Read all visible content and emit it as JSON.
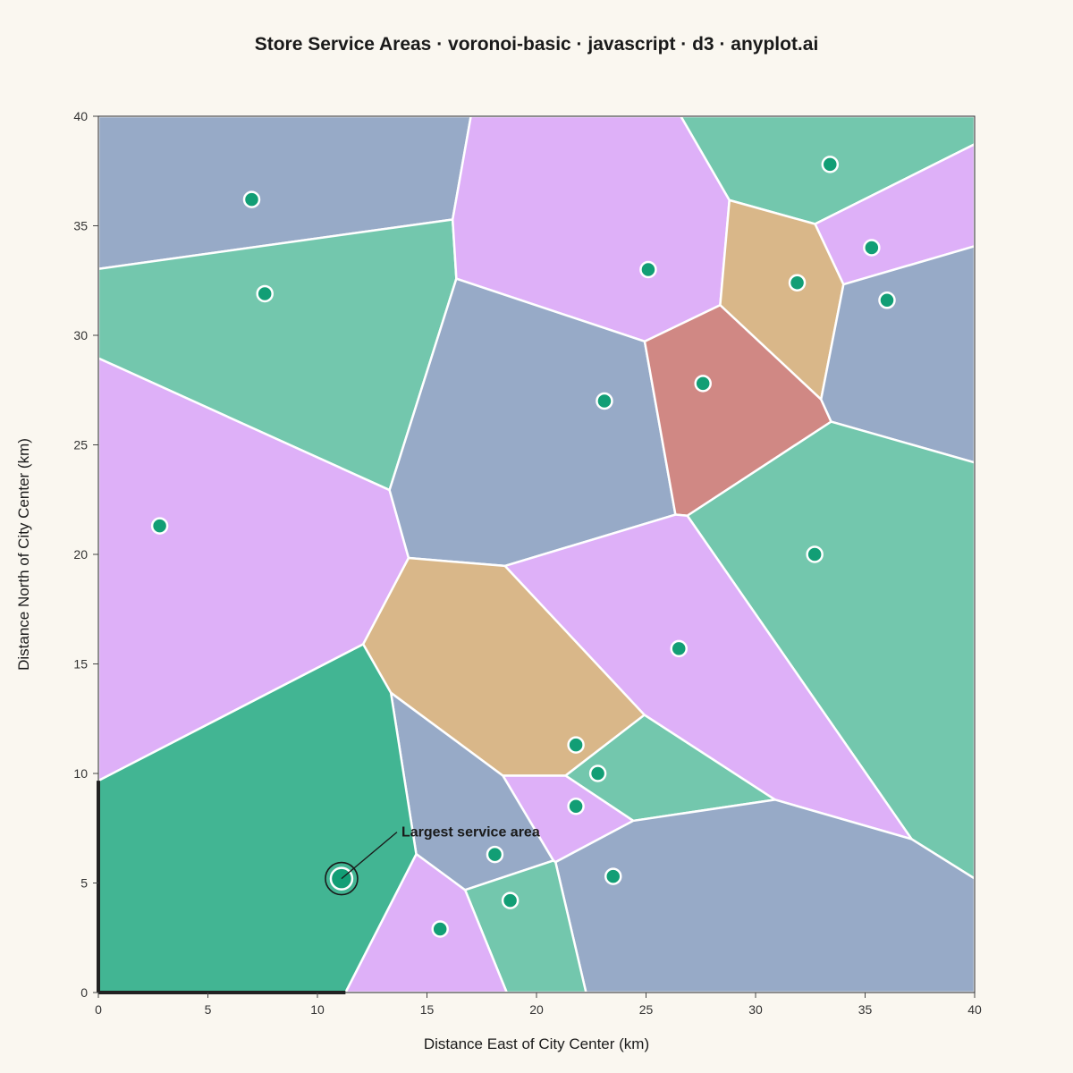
{
  "chart_data": {
    "type": "voronoi",
    "title": "Store Service Areas · voronoi-basic · javascript · d3 · anyplot.ai",
    "xlabel": "Distance East of City Center (km)",
    "ylabel": "Distance North of City Center (km)",
    "xlim": [
      0,
      40
    ],
    "ylim": [
      0,
      40
    ],
    "xticks": [
      0,
      5,
      10,
      15,
      20,
      25,
      30,
      35,
      40
    ],
    "yticks": [
      0,
      5,
      10,
      15,
      20,
      25,
      30,
      35,
      40
    ],
    "grid": false,
    "colors": {
      "background": "#FAF7F0",
      "blue": "#97AAC7",
      "lilac": "#DEB0F8",
      "green": "#73C7AD",
      "tan": "#D9B789",
      "red": "#D08884",
      "highlight": "#42B593",
      "point": "#129E75",
      "edge": "#FFFFFF"
    },
    "stores": [
      {
        "x": 7.0,
        "y": 36.2,
        "color": "blue"
      },
      {
        "x": 7.6,
        "y": 31.9,
        "color": "green"
      },
      {
        "x": 2.8,
        "y": 21.3,
        "color": "lilac"
      },
      {
        "x": 25.1,
        "y": 33.0,
        "color": "lilac"
      },
      {
        "x": 33.4,
        "y": 37.8,
        "color": "green"
      },
      {
        "x": 35.3,
        "y": 34.0,
        "color": "lilac"
      },
      {
        "x": 31.9,
        "y": 32.4,
        "color": "tan"
      },
      {
        "x": 36.0,
        "y": 31.6,
        "color": "blue"
      },
      {
        "x": 23.1,
        "y": 27.0,
        "color": "blue"
      },
      {
        "x": 27.6,
        "y": 27.8,
        "color": "red"
      },
      {
        "x": 32.7,
        "y": 20.0,
        "color": "green"
      },
      {
        "x": 26.5,
        "y": 15.7,
        "color": "lilac"
      },
      {
        "x": 21.8,
        "y": 11.3,
        "color": "tan"
      },
      {
        "x": 22.8,
        "y": 10.0,
        "color": "green"
      },
      {
        "x": 21.8,
        "y": 8.5,
        "color": "lilac"
      },
      {
        "x": 23.5,
        "y": 5.3,
        "color": "blue"
      },
      {
        "x": 18.1,
        "y": 6.3,
        "color": "blue"
      },
      {
        "x": 18.8,
        "y": 4.2,
        "color": "green"
      },
      {
        "x": 15.6,
        "y": 2.9,
        "color": "lilac"
      },
      {
        "x": 11.1,
        "y": 5.2,
        "color": "highlight",
        "highlight": true
      }
    ],
    "annotation": {
      "text": "Largest service area",
      "x": 11.1,
      "y": 5.2
    }
  }
}
